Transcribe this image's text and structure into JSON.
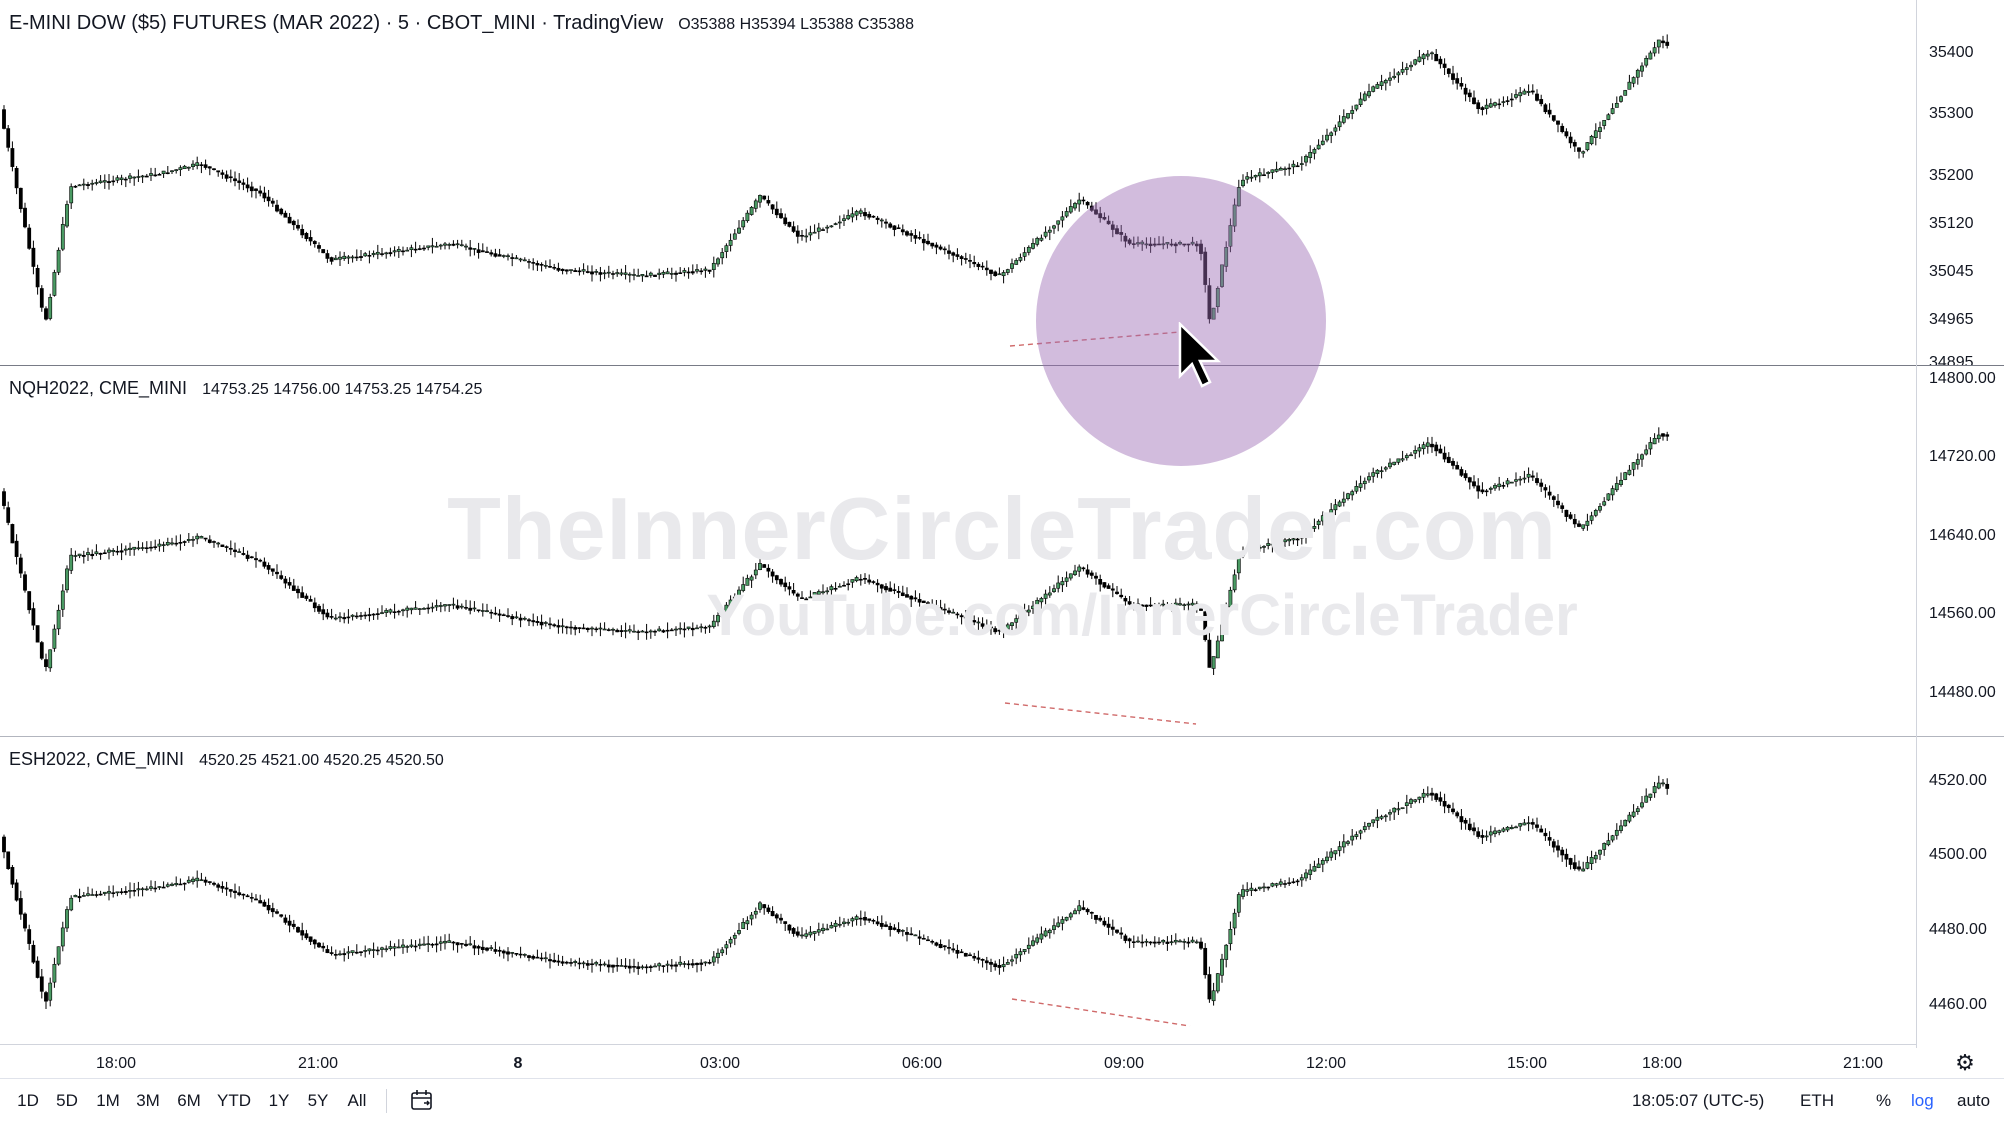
{
  "panes": [
    {
      "symbol": "E-MINI DOW ($5) FUTURES (MAR 2022) · 5 · CBOT_MINI · TradingView",
      "ohlc": "O35388 H35394 L35388 C35388",
      "price_labels": [
        "35400",
        "35300",
        "35200",
        "35120",
        "35045",
        "34965",
        "34895"
      ]
    },
    {
      "symbol": "NQH2022, CME_MINI",
      "ohlc": "14753.25 14756.00 14753.25 14754.25",
      "price_labels": [
        "14800.00",
        "14720.00",
        "14640.00",
        "14560.00",
        "14480.00"
      ]
    },
    {
      "symbol": "ESH2022, CME_MINI",
      "ohlc": "4520.25 4521.00 4520.25 4520.50",
      "price_labels": [
        "4520.00",
        "4500.00",
        "4480.00",
        "4460.00"
      ]
    }
  ],
  "time_axis": [
    "18:00",
    "21:00",
    "8",
    "03:00",
    "06:00",
    "09:00",
    "12:00",
    "15:00",
    "18:00",
    "21:00"
  ],
  "range_buttons": [
    "1D",
    "5D",
    "1M",
    "3M",
    "6M",
    "YTD",
    "1Y",
    "5Y",
    "All"
  ],
  "status": {
    "clock": "18:05:07 (UTC-5)",
    "session": "ETH",
    "percent": "%",
    "log": "log",
    "auto": "auto"
  },
  "watermark": {
    "line1": "TheInnerCircleTrader.com",
    "line2": "YouTube.com/InnerCircleTrader"
  },
  "colors": {
    "up": "#4a9a63",
    "down": "#000000",
    "divergence": "#d06a6a",
    "highlight": "#9c6bb4"
  },
  "icons": [
    "gear-icon",
    "calendar-icon",
    "cursor-arrow-icon"
  ]
}
